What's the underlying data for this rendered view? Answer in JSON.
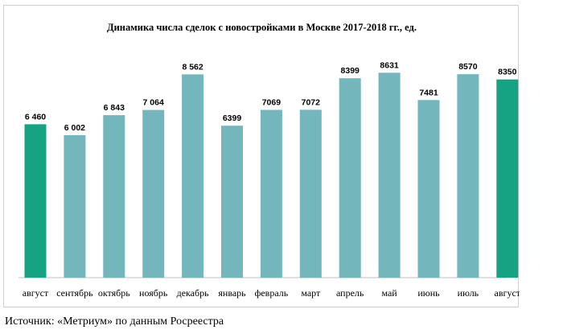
{
  "chart_data": {
    "type": "bar",
    "title": "Динамика числа сделок с новостройками в Москве 2017-2018 гг., ед.",
    "categories": [
      "август",
      "сентябрь",
      "октябрь",
      "ноябрь",
      "декабрь",
      "январь",
      "февраль",
      "март",
      "апрель",
      "май",
      "июнь",
      "июль",
      "август"
    ],
    "values": [
      6460,
      6002,
      6843,
      7064,
      8562,
      6399,
      7069,
      7072,
      8399,
      8631,
      7481,
      8570,
      8350
    ],
    "value_labels": [
      "6 460",
      "6 002",
      "6 843",
      "7 064",
      "8 562",
      "6399",
      "7069",
      "7072",
      "8399",
      "8631",
      "7481",
      "8570",
      "8350"
    ],
    "highlighted": [
      0,
      12
    ],
    "colors": {
      "normal": "#73b6bc",
      "highlight": "#16a384"
    },
    "xlabel": "",
    "ylabel": "",
    "ylim": [
      0,
      9000
    ],
    "grid": false,
    "legend": "none"
  },
  "source": "Источник: «Метриум» по данным Росреестра"
}
